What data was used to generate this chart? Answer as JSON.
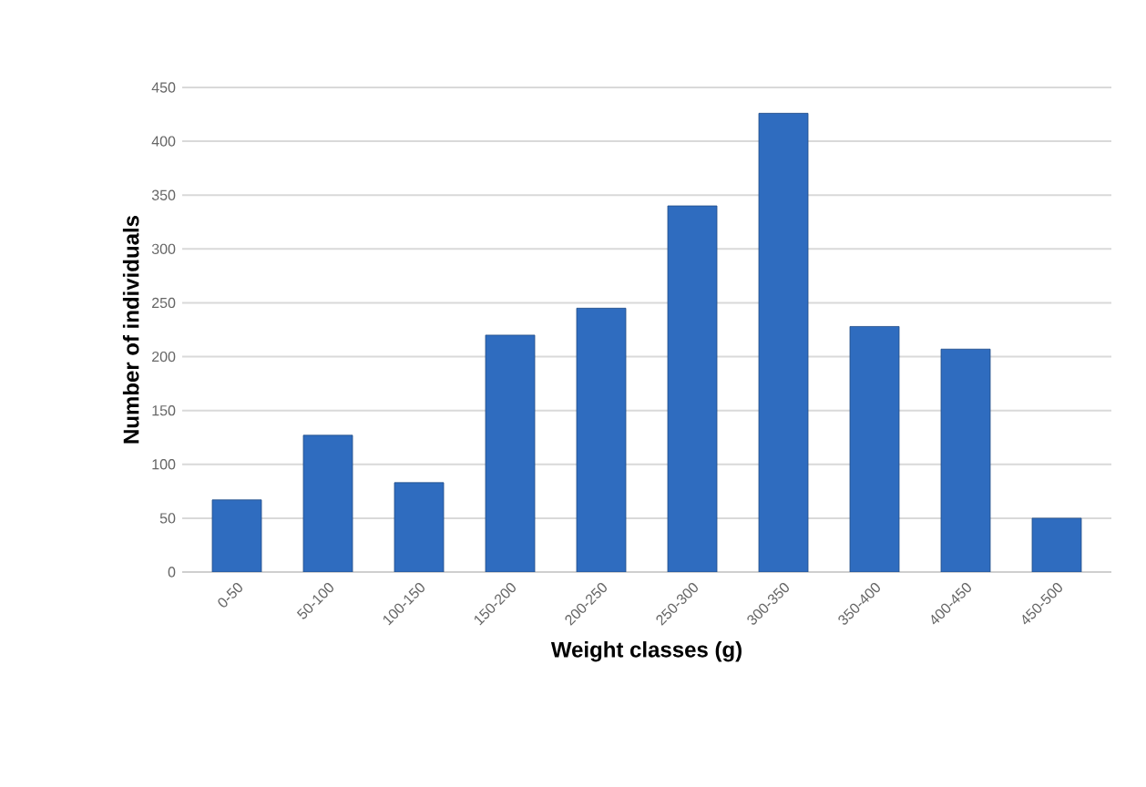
{
  "chart_data": {
    "type": "bar",
    "categories": [
      "0-50",
      "50-100",
      "100-150",
      "150-200",
      "200-250",
      "250-300",
      "300-350",
      "350-400",
      "400-450",
      "450-500"
    ],
    "values": [
      67,
      127,
      83,
      220,
      245,
      340,
      426,
      228,
      207,
      50
    ],
    "color": "#2f6cbf",
    "xlabel": "Weight classes  (g)",
    "ylabel": "Number of individuals",
    "ylim": [
      0,
      450
    ],
    "yticks": [
      0,
      50,
      100,
      150,
      200,
      250,
      300,
      350,
      400,
      450
    ],
    "grid": "y"
  }
}
